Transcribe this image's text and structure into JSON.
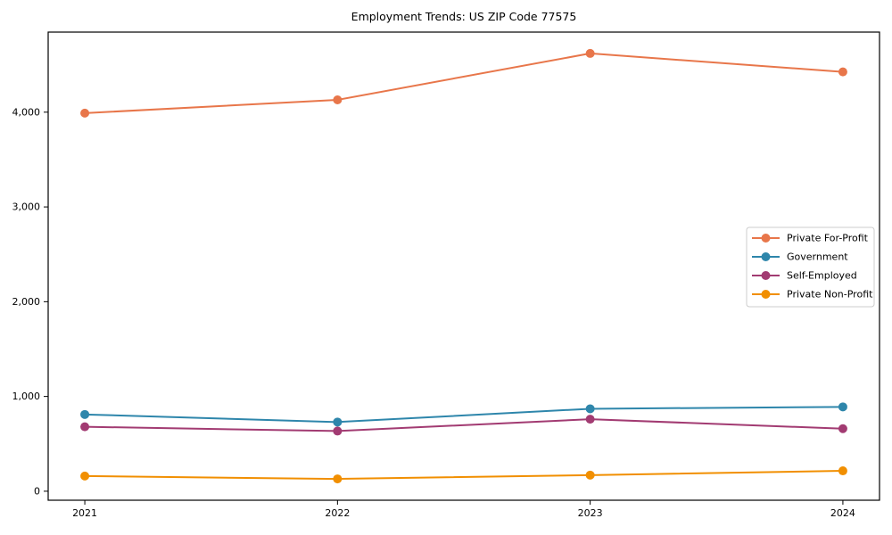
{
  "title": "Employment Trends: US ZIP Code 77575",
  "chart_data": {
    "type": "line",
    "title": "Employment Trends: US ZIP Code 77575",
    "x": [
      2021,
      2022,
      2023,
      2024
    ],
    "x_tick_labels": [
      "2021",
      "2022",
      "2023",
      "2024"
    ],
    "y_ticks": [
      0,
      1000,
      2000,
      3000,
      4000
    ],
    "y_tick_labels": [
      "0",
      "1,000",
      "2,000",
      "3,000",
      "4,000"
    ],
    "xlim": [
      2020.855,
      2024.145
    ],
    "ylim": [
      -95,
      4845
    ],
    "grid": false,
    "marker": "circle",
    "marker_size": 5,
    "line_width": 2,
    "axes": {
      "spine_color": "#000000",
      "tick_color": "#000000",
      "text_color": "#000000",
      "background": "#ffffff"
    },
    "legend": {
      "position": "center-right",
      "background": "#ffffff",
      "border_color": "#cccccc",
      "entries": [
        "Private For-Profit",
        "Government",
        "Self-Employed",
        "Private Non-Profit"
      ]
    },
    "series": [
      {
        "name": "Private For-Profit",
        "color": "#e8764a",
        "values": [
          3990,
          4130,
          4620,
          4425
        ]
      },
      {
        "name": "Government",
        "color": "#2e86ab",
        "values": [
          810,
          730,
          870,
          890
        ]
      },
      {
        "name": "Self-Employed",
        "color": "#a23b72",
        "values": [
          680,
          635,
          760,
          660
        ]
      },
      {
        "name": "Private Non-Profit",
        "color": "#f18f01",
        "values": [
          160,
          130,
          170,
          215
        ]
      }
    ]
  }
}
